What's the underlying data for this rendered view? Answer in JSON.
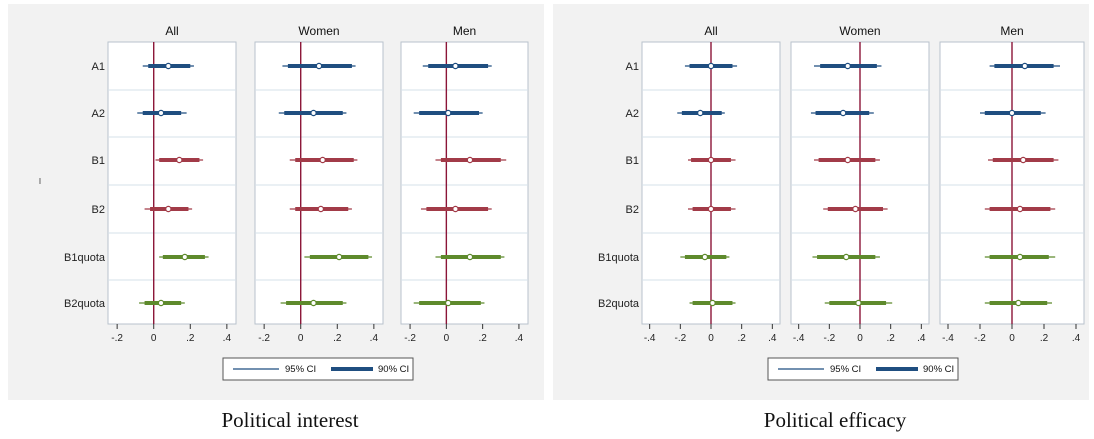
{
  "chart_data": [
    {
      "type": "coefficient_plot",
      "caption": "Political interest",
      "panels": [
        "All",
        "Women",
        "Men"
      ],
      "categories": [
        "A1",
        "A2",
        "B1",
        "B2",
        "B1quota",
        "B2quota"
      ],
      "y_side_label": "I",
      "xlim": [
        -0.25,
        0.45
      ],
      "xticks": [
        -0.2,
        0,
        0.2,
        0.4
      ],
      "xtick_labels": [
        "-.2",
        "0",
        ".2",
        ".4"
      ],
      "reference_line": 0,
      "legend": [
        "95% CI",
        "90% CI"
      ],
      "series": [
        {
          "panel": "All",
          "estimates": [
            {
              "category": "A1",
              "point": 0.08,
              "ci95": [
                -0.06,
                0.22
              ],
              "ci90": [
                -0.03,
                0.2
              ]
            },
            {
              "category": "A2",
              "point": 0.04,
              "ci95": [
                -0.09,
                0.18
              ],
              "ci90": [
                -0.06,
                0.15
              ]
            },
            {
              "category": "B1",
              "point": 0.14,
              "ci95": [
                0.01,
                0.27
              ],
              "ci90": [
                0.03,
                0.25
              ]
            },
            {
              "category": "B2",
              "point": 0.08,
              "ci95": [
                -0.05,
                0.21
              ],
              "ci90": [
                -0.02,
                0.19
              ]
            },
            {
              "category": "B1quota",
              "point": 0.17,
              "ci95": [
                0.03,
                0.3
              ],
              "ci90": [
                0.05,
                0.28
              ]
            },
            {
              "category": "B2quota",
              "point": 0.04,
              "ci95": [
                -0.08,
                0.17
              ],
              "ci90": [
                -0.05,
                0.15
              ]
            }
          ]
        },
        {
          "panel": "Women",
          "estimates": [
            {
              "category": "A1",
              "point": 0.1,
              "ci95": [
                -0.1,
                0.3
              ],
              "ci90": [
                -0.07,
                0.28
              ]
            },
            {
              "category": "A2",
              "point": 0.07,
              "ci95": [
                -0.12,
                0.25
              ],
              "ci90": [
                -0.09,
                0.23
              ]
            },
            {
              "category": "B1",
              "point": 0.12,
              "ci95": [
                -0.06,
                0.31
              ],
              "ci90": [
                -0.03,
                0.29
              ]
            },
            {
              "category": "B2",
              "point": 0.11,
              "ci95": [
                -0.06,
                0.28
              ],
              "ci90": [
                -0.03,
                0.26
              ]
            },
            {
              "category": "B1quota",
              "point": 0.21,
              "ci95": [
                0.02,
                0.39
              ],
              "ci90": [
                0.05,
                0.37
              ]
            },
            {
              "category": "B2quota",
              "point": 0.07,
              "ci95": [
                -0.11,
                0.25
              ],
              "ci90": [
                -0.08,
                0.23
              ]
            }
          ]
        },
        {
          "panel": "Men",
          "estimates": [
            {
              "category": "A1",
              "point": 0.05,
              "ci95": [
                -0.13,
                0.25
              ],
              "ci90": [
                -0.1,
                0.23
              ]
            },
            {
              "category": "A2",
              "point": 0.01,
              "ci95": [
                -0.18,
                0.2
              ],
              "ci90": [
                -0.15,
                0.18
              ]
            },
            {
              "category": "B1",
              "point": 0.13,
              "ci95": [
                -0.06,
                0.33
              ],
              "ci90": [
                -0.03,
                0.3
              ]
            },
            {
              "category": "B2",
              "point": 0.05,
              "ci95": [
                -0.14,
                0.25
              ],
              "ci90": [
                -0.11,
                0.23
              ]
            },
            {
              "category": "B1quota",
              "point": 0.13,
              "ci95": [
                -0.06,
                0.32
              ],
              "ci90": [
                -0.03,
                0.3
              ]
            },
            {
              "category": "B2quota",
              "point": 0.01,
              "ci95": [
                -0.18,
                0.21
              ],
              "ci90": [
                -0.15,
                0.19
              ]
            }
          ]
        }
      ]
    },
    {
      "type": "coefficient_plot",
      "caption": "Political efficacy",
      "panels": [
        "All",
        "Women",
        "Men"
      ],
      "categories": [
        "A1",
        "A2",
        "B1",
        "B2",
        "B1quota",
        "B2quota"
      ],
      "y_side_label": "",
      "xlim": [
        -0.45,
        0.45
      ],
      "xticks": [
        -0.4,
        -0.2,
        0,
        0.2,
        0.4
      ],
      "xtick_labels": [
        "-.4",
        "-.2",
        "0",
        ".2",
        ".4"
      ],
      "reference_line": 0,
      "legend": [
        "95% CI",
        "90% CI"
      ],
      "series": [
        {
          "panel": "All",
          "estimates": [
            {
              "category": "A1",
              "point": 0.0,
              "ci95": [
                -0.17,
                0.17
              ],
              "ci90": [
                -0.14,
                0.14
              ]
            },
            {
              "category": "A2",
              "point": -0.07,
              "ci95": [
                -0.22,
                0.09
              ],
              "ci90": [
                -0.19,
                0.07
              ]
            },
            {
              "category": "B1",
              "point": 0.0,
              "ci95": [
                -0.15,
                0.16
              ],
              "ci90": [
                -0.13,
                0.13
              ]
            },
            {
              "category": "B2",
              "point": 0.0,
              "ci95": [
                -0.15,
                0.16
              ],
              "ci90": [
                -0.12,
                0.13
              ]
            },
            {
              "category": "B1quota",
              "point": -0.04,
              "ci95": [
                -0.2,
                0.12
              ],
              "ci90": [
                -0.17,
                0.1
              ]
            },
            {
              "category": "B2quota",
              "point": 0.01,
              "ci95": [
                -0.14,
                0.16
              ],
              "ci90": [
                -0.12,
                0.14
              ]
            }
          ]
        },
        {
          "panel": "Women",
          "estimates": [
            {
              "category": "A1",
              "point": -0.08,
              "ci95": [
                -0.3,
                0.14
              ],
              "ci90": [
                -0.26,
                0.11
              ]
            },
            {
              "category": "A2",
              "point": -0.11,
              "ci95": [
                -0.32,
                0.09
              ],
              "ci90": [
                -0.29,
                0.06
              ]
            },
            {
              "category": "B1",
              "point": -0.08,
              "ci95": [
                -0.3,
                0.13
              ],
              "ci90": [
                -0.27,
                0.1
              ]
            },
            {
              "category": "B2",
              "point": -0.03,
              "ci95": [
                -0.24,
                0.18
              ],
              "ci90": [
                -0.21,
                0.15
              ]
            },
            {
              "category": "B1quota",
              "point": -0.09,
              "ci95": [
                -0.31,
                0.13
              ],
              "ci90": [
                -0.28,
                0.1
              ]
            },
            {
              "category": "B2quota",
              "point": -0.01,
              "ci95": [
                -0.23,
                0.21
              ],
              "ci90": [
                -0.2,
                0.17
              ]
            }
          ]
        },
        {
          "panel": "Men",
          "estimates": [
            {
              "category": "A1",
              "point": 0.08,
              "ci95": [
                -0.14,
                0.3
              ],
              "ci90": [
                -0.11,
                0.26
              ]
            },
            {
              "category": "A2",
              "point": 0.0,
              "ci95": [
                -0.2,
                0.21
              ],
              "ci90": [
                -0.17,
                0.18
              ]
            },
            {
              "category": "B1",
              "point": 0.07,
              "ci95": [
                -0.15,
                0.29
              ],
              "ci90": [
                -0.12,
                0.26
              ]
            },
            {
              "category": "B2",
              "point": 0.05,
              "ci95": [
                -0.17,
                0.27
              ],
              "ci90": [
                -0.14,
                0.24
              ]
            },
            {
              "category": "B1quota",
              "point": 0.05,
              "ci95": [
                -0.17,
                0.27
              ],
              "ci90": [
                -0.14,
                0.23
              ]
            },
            {
              "category": "B2quota",
              "point": 0.04,
              "ci95": [
                -0.17,
                0.25
              ],
              "ci90": [
                -0.14,
                0.22
              ]
            }
          ]
        }
      ]
    }
  ],
  "colors": {
    "category_colors": [
      "#1f4e80",
      "#1f4e80",
      "#a23b48",
      "#a23b48",
      "#5e8a2c",
      "#5e8a2c"
    ],
    "reference_line": "#8b1538",
    "legend_line": "#1f4e80",
    "panel_border": "#b8c2cc",
    "grid": "#d6e0e8",
    "plot_bg": "#ffffff",
    "figure_bg": "#f2f2f2"
  }
}
